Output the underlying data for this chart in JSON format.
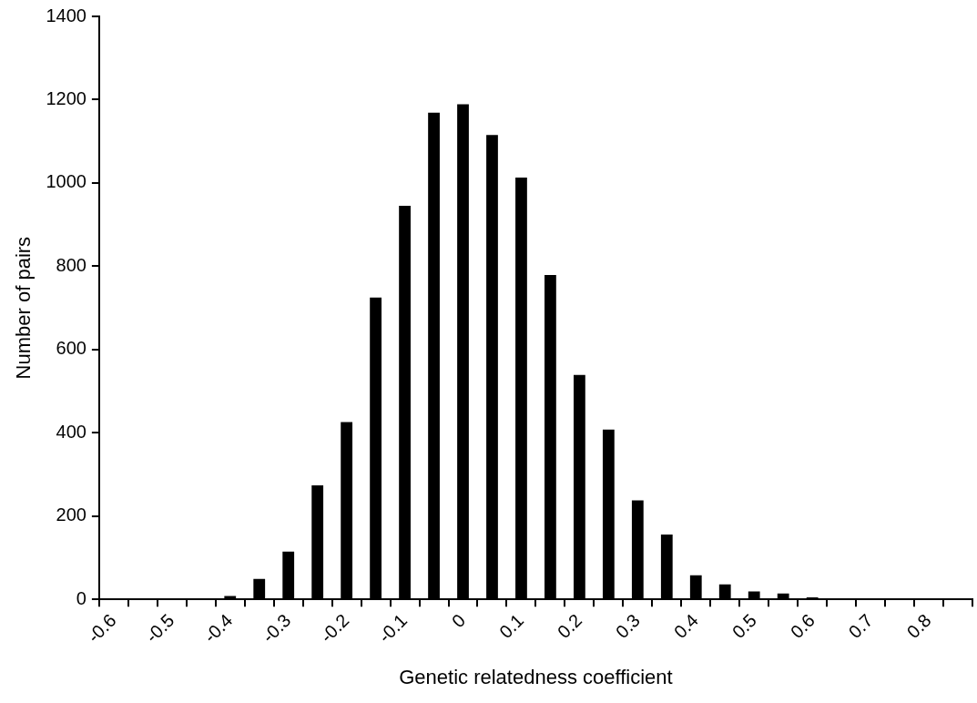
{
  "chart_data": {
    "type": "bar",
    "xlabel": "Genetic relatedness coefficient",
    "ylabel": "Number of pairs",
    "categories": [
      "-0.6",
      null,
      "-0.5",
      null,
      "-0.4",
      null,
      "-0.3",
      null,
      "-0.2",
      null,
      "-0.1",
      null,
      "0",
      null,
      "0.1",
      null,
      "0.2",
      null,
      "0.3",
      null,
      "0.4",
      null,
      "0.5",
      null,
      "0.6",
      null,
      "0.7",
      null,
      "0.8",
      null
    ],
    "values": [
      0,
      0,
      0,
      1,
      8,
      49,
      115,
      274,
      426,
      725,
      945,
      1169,
      1189,
      1115,
      1013,
      779,
      539,
      408,
      238,
      156,
      58,
      36,
      19,
      14,
      5,
      1,
      0,
      0,
      0,
      0
    ],
    "color": "#000000",
    "ylim": [
      0,
      1400
    ],
    "yticks": [
      0,
      200,
      400,
      600,
      800,
      1000,
      1200,
      1400
    ],
    "grid": false,
    "legend": false
  }
}
